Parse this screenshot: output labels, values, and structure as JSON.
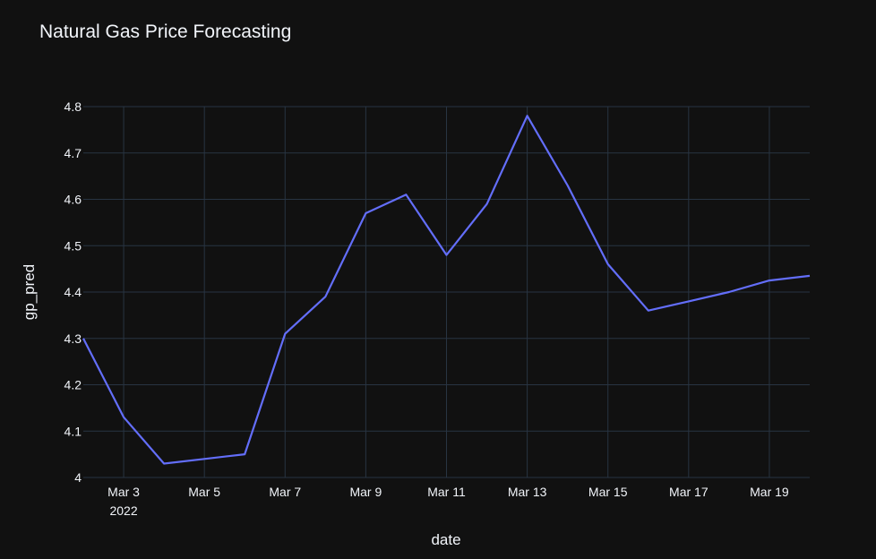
{
  "chart_data": {
    "type": "line",
    "title": "Natural Gas Price Forecasting",
    "xlabel": "date",
    "ylabel": "gp_pred",
    "x": [
      "2022-03-02",
      "2022-03-03",
      "2022-03-04",
      "2022-03-05",
      "2022-03-06",
      "2022-03-07",
      "2022-03-08",
      "2022-03-09",
      "2022-03-10",
      "2022-03-11",
      "2022-03-12",
      "2022-03-13",
      "2022-03-14",
      "2022-03-15",
      "2022-03-16",
      "2022-03-17",
      "2022-03-18",
      "2022-03-19",
      "2022-03-20"
    ],
    "series": [
      {
        "values": [
          4.3,
          4.13,
          4.03,
          4.04,
          4.05,
          4.31,
          4.39,
          4.57,
          4.61,
          4.48,
          4.59,
          4.78,
          4.63,
          4.46,
          4.36,
          4.38,
          4.4,
          4.425,
          4.435
        ]
      }
    ],
    "xlim": [
      "2022-03-02",
      "2022-03-20"
    ],
    "ylim": [
      4.0,
      4.8
    ],
    "y_ticks": [
      "4",
      "4.1",
      "4.2",
      "4.3",
      "4.4",
      "4.5",
      "4.6",
      "4.7",
      "4.8"
    ],
    "y_tick_values": [
      4.0,
      4.1,
      4.2,
      4.3,
      4.4,
      4.5,
      4.6,
      4.7,
      4.8
    ],
    "x_ticks": [
      "Mar 3",
      "Mar 5",
      "Mar 7",
      "Mar 9",
      "Mar 11",
      "Mar 13",
      "Mar 15",
      "Mar 17",
      "Mar 19"
    ],
    "x_tick_dates": [
      "2022-03-03",
      "2022-03-05",
      "2022-03-07",
      "2022-03-09",
      "2022-03-11",
      "2022-03-13",
      "2022-03-15",
      "2022-03-17",
      "2022-03-19"
    ],
    "x_tick_sublabel": "2022",
    "grid": true,
    "colors": {
      "background": "#111111",
      "grid": "#283442",
      "line": "#636efa",
      "text": "#f2f5fa"
    }
  }
}
